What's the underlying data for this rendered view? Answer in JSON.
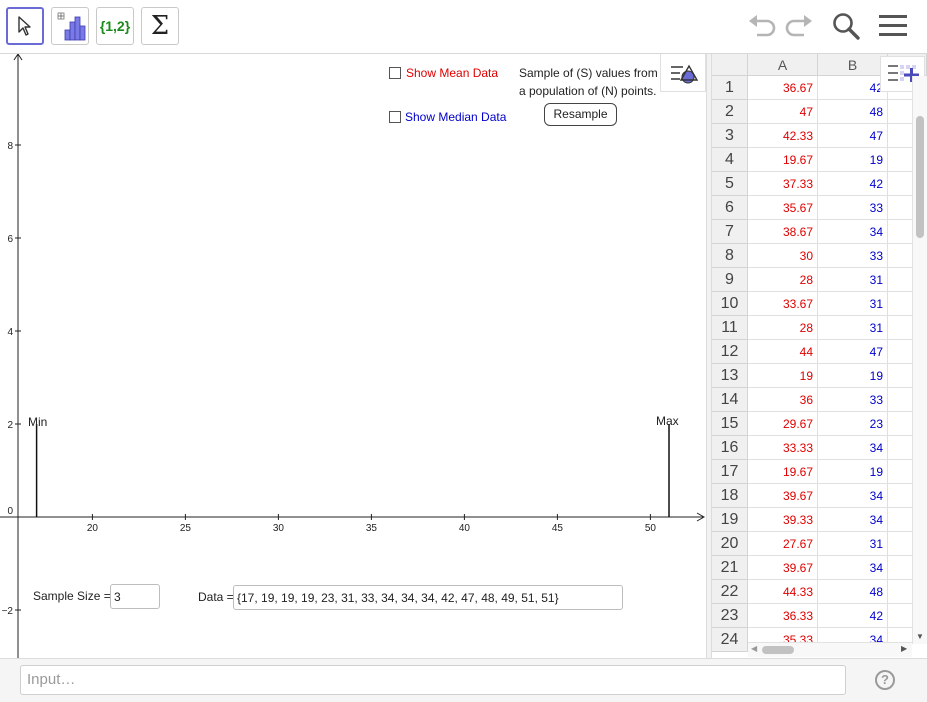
{
  "toolbar": {
    "tools": [
      {
        "name": "move-tool",
        "icon": "arrow-pointer-icon"
      },
      {
        "name": "one-variable-analysis-tool",
        "icon": "histogram-icon"
      },
      {
        "name": "create-list-tool",
        "label": "{1,2}"
      },
      {
        "name": "sum-tool",
        "label": "Σ"
      }
    ],
    "right_icons": [
      "undo-icon",
      "redo-icon",
      "search-icon",
      "menu-icon"
    ]
  },
  "graphics": {
    "show_mean_label": "Show Mean Data",
    "show_median_label": "Show Median Data",
    "show_mean_checked": false,
    "show_median_checked": false,
    "description_line1": "Sample of (S) values from",
    "description_line2": "a population of (N) points.",
    "resample_label": "Resample",
    "min_label": "Min",
    "max_label": "Max",
    "sample_size_label": "Sample Size =",
    "sample_size_value": "3",
    "data_label": "Data =",
    "data_value": "{17, 19, 19, 19, 23, 31, 33, 34, 34, 34, 42, 47, 48, 49, 51, 51}",
    "axes": {
      "x_ticks": [
        "20",
        "25",
        "30",
        "35",
        "40",
        "45",
        "50"
      ],
      "y_ticks": [
        "8",
        "6",
        "4",
        "2",
        "0",
        "−2"
      ]
    },
    "min_x": 17,
    "max_x": 51,
    "segment_height": 2
  },
  "spreadsheet": {
    "columns": [
      "A",
      "B"
    ],
    "rows": [
      {
        "n": "1",
        "a": "36.67",
        "b": "42"
      },
      {
        "n": "2",
        "a": "47",
        "b": "48"
      },
      {
        "n": "3",
        "a": "42.33",
        "b": "47"
      },
      {
        "n": "4",
        "a": "19.67",
        "b": "19"
      },
      {
        "n": "5",
        "a": "37.33",
        "b": "42"
      },
      {
        "n": "6",
        "a": "35.67",
        "b": "33"
      },
      {
        "n": "7",
        "a": "38.67",
        "b": "34"
      },
      {
        "n": "8",
        "a": "30",
        "b": "33"
      },
      {
        "n": "9",
        "a": "28",
        "b": "31"
      },
      {
        "n": "10",
        "a": "33.67",
        "b": "31"
      },
      {
        "n": "11",
        "a": "28",
        "b": "31"
      },
      {
        "n": "12",
        "a": "44",
        "b": "47"
      },
      {
        "n": "13",
        "a": "19",
        "b": "19"
      },
      {
        "n": "14",
        "a": "36",
        "b": "33"
      },
      {
        "n": "15",
        "a": "29.67",
        "b": "23"
      },
      {
        "n": "16",
        "a": "33.33",
        "b": "34"
      },
      {
        "n": "17",
        "a": "19.67",
        "b": "19"
      },
      {
        "n": "18",
        "a": "39.67",
        "b": "34"
      },
      {
        "n": "19",
        "a": "39.33",
        "b": "34"
      },
      {
        "n": "20",
        "a": "27.67",
        "b": "31"
      },
      {
        "n": "21",
        "a": "39.67",
        "b": "34"
      },
      {
        "n": "22",
        "a": "44.33",
        "b": "48"
      },
      {
        "n": "23",
        "a": "36.33",
        "b": "42"
      },
      {
        "n": "24",
        "a": "35.33",
        "b": "34"
      }
    ]
  },
  "input_bar": {
    "placeholder": "Input…",
    "help_label": "?"
  },
  "colors": {
    "accent": "#6b6bd6",
    "mean_red": "#e00000",
    "median_blue": "#0000cc",
    "set_green": "#1b8a1b"
  }
}
